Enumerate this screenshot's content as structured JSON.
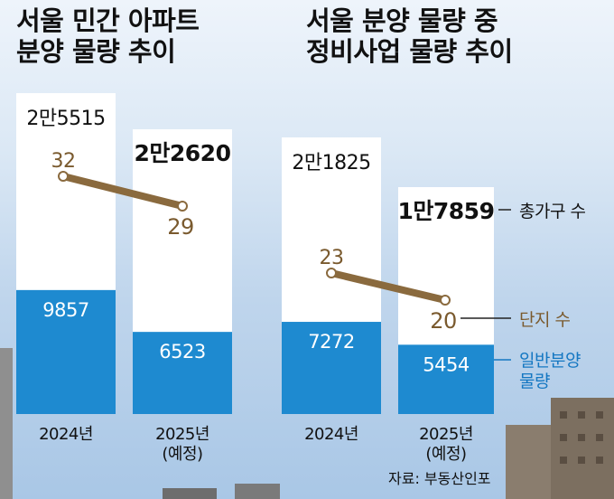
{
  "titles": {
    "left": [
      "서울 민간 아파트",
      "분양 물량 추이"
    ],
    "right": [
      "서울 분양 물량 중",
      "정비사업 물량 추이"
    ]
  },
  "legend": {
    "total": "총가구 수",
    "complexes": "단지 수",
    "general": [
      "일반분양",
      "물량"
    ]
  },
  "source": "자료: 부동산인포",
  "colors": {
    "bar_total": "#ffffff",
    "bar_general": "#1e8ad0",
    "line": "#8a6a3e",
    "complex_label": "#7a5a2e",
    "legend_general": "#1477c2"
  },
  "chart_data": [
    {
      "type": "bar",
      "categories": [
        "2024년",
        "2025년\n(예정)"
      ],
      "series": [
        {
          "name": "총가구 수",
          "values": [
            25515,
            22620
          ],
          "labels": [
            "2만5515",
            "2만2620"
          ]
        },
        {
          "name": "일반분양 물량",
          "values": [
            9857,
            6523
          ],
          "labels": [
            "9857",
            "6523"
          ]
        },
        {
          "name": "단지 수",
          "type": "line",
          "values": [
            32,
            29
          ],
          "labels": [
            "32",
            "29"
          ]
        }
      ]
    },
    {
      "type": "bar",
      "categories": [
        "2024년",
        "2025년\n(예정)"
      ],
      "series": [
        {
          "name": "총가구 수",
          "values": [
            21825,
            17859
          ],
          "labels": [
            "2만1825",
            "1만7859"
          ]
        },
        {
          "name": "일반분양 물량",
          "values": [
            7272,
            5454
          ],
          "labels": [
            "7272",
            "5454"
          ]
        },
        {
          "name": "단지 수",
          "type": "line",
          "values": [
            23,
            20
          ],
          "labels": [
            "23",
            "20"
          ]
        }
      ]
    }
  ]
}
